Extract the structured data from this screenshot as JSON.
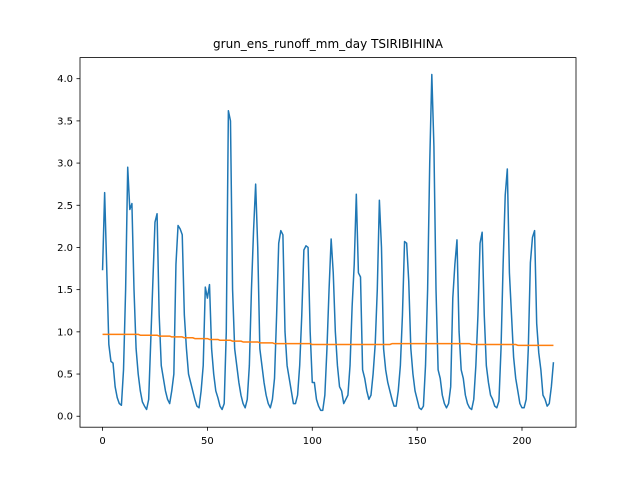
{
  "chart_data": {
    "type": "line",
    "title": "grun_ens_runoff_mm_day TSIRIBIHINA",
    "x": [
      0,
      1,
      2,
      3,
      4,
      5,
      6,
      7,
      8,
      9,
      10,
      11,
      12,
      13,
      14,
      15,
      16,
      17,
      18,
      19,
      20,
      21,
      22,
      23,
      24,
      25,
      26,
      27,
      28,
      29,
      30,
      31,
      32,
      33,
      34,
      35,
      36,
      37,
      38,
      39,
      40,
      41,
      42,
      43,
      44,
      45,
      46,
      47,
      48,
      49,
      50,
      51,
      52,
      53,
      54,
      55,
      56,
      57,
      58,
      59,
      60,
      61,
      62,
      63,
      64,
      65,
      66,
      67,
      68,
      69,
      70,
      71,
      72,
      73,
      74,
      75,
      76,
      77,
      78,
      79,
      80,
      81,
      82,
      83,
      84,
      85,
      86,
      87,
      88,
      89,
      90,
      91,
      92,
      93,
      94,
      95,
      96,
      97,
      98,
      99,
      100,
      101,
      102,
      103,
      104,
      105,
      106,
      107,
      108,
      109,
      110,
      111,
      112,
      113,
      114,
      115,
      116,
      117,
      118,
      119,
      120,
      121,
      122,
      123,
      124,
      125,
      126,
      127,
      128,
      129,
      130,
      131,
      132,
      133,
      134,
      135,
      136,
      137,
      138,
      139,
      140,
      141,
      142,
      143,
      144,
      145,
      146,
      147,
      148,
      149,
      150,
      151,
      152,
      153,
      154,
      155,
      156,
      157,
      158,
      159,
      160,
      161,
      162,
      163,
      164,
      165,
      166,
      167,
      168,
      169,
      170,
      171,
      172,
      173,
      174,
      175,
      176,
      177,
      178,
      179,
      180,
      181,
      182,
      183,
      184,
      185,
      186,
      187,
      188,
      189,
      190,
      191,
      192,
      193,
      194,
      195,
      196,
      197,
      198,
      199,
      200,
      201,
      202,
      203,
      204,
      205,
      206,
      207,
      208,
      209,
      210,
      211,
      212,
      213,
      214,
      215
    ],
    "series": [
      {
        "color": "#1f77b4",
        "values": [
          1.73,
          2.65,
          1.75,
          0.85,
          0.65,
          0.63,
          0.35,
          0.22,
          0.15,
          0.13,
          0.55,
          1.5,
          2.95,
          2.45,
          2.52,
          1.5,
          0.8,
          0.5,
          0.3,
          0.17,
          0.12,
          0.08,
          0.2,
          0.9,
          1.6,
          2.3,
          2.4,
          1.2,
          0.6,
          0.45,
          0.3,
          0.2,
          0.15,
          0.3,
          0.5,
          1.8,
          2.26,
          2.22,
          2.15,
          1.2,
          0.8,
          0.5,
          0.4,
          0.3,
          0.2,
          0.12,
          0.1,
          0.3,
          0.6,
          1.53,
          1.4,
          1.56,
          0.8,
          0.5,
          0.3,
          0.22,
          0.12,
          0.08,
          0.15,
          1.0,
          3.62,
          3.5,
          1.5,
          0.8,
          0.6,
          0.4,
          0.25,
          0.15,
          0.1,
          0.2,
          0.6,
          1.5,
          2.2,
          2.75,
          2.0,
          0.8,
          0.6,
          0.4,
          0.25,
          0.15,
          0.1,
          0.2,
          0.45,
          1.2,
          2.05,
          2.2,
          2.15,
          1.0,
          0.6,
          0.45,
          0.3,
          0.15,
          0.15,
          0.25,
          0.6,
          1.2,
          1.97,
          2.02,
          2.0,
          1.0,
          0.4,
          0.4,
          0.2,
          0.12,
          0.07,
          0.07,
          0.25,
          0.8,
          1.5,
          2.1,
          1.7,
          1.0,
          0.6,
          0.35,
          0.3,
          0.15,
          0.2,
          0.25,
          0.6,
          1.3,
          1.8,
          2.63,
          1.7,
          1.65,
          0.55,
          0.45,
          0.3,
          0.2,
          0.25,
          0.5,
          0.85,
          1.5,
          2.56,
          2.0,
          0.8,
          0.55,
          0.4,
          0.3,
          0.2,
          0.12,
          0.12,
          0.3,
          0.6,
          1.2,
          2.07,
          2.05,
          1.6,
          0.8,
          0.5,
          0.3,
          0.2,
          0.1,
          0.08,
          0.12,
          0.6,
          1.5,
          3.0,
          4.05,
          3.2,
          1.5,
          0.55,
          0.45,
          0.25,
          0.15,
          0.1,
          0.15,
          0.35,
          1.4,
          1.8,
          2.09,
          1.0,
          0.55,
          0.45,
          0.25,
          0.15,
          0.1,
          0.08,
          0.2,
          0.6,
          1.2,
          2.05,
          2.18,
          1.2,
          0.6,
          0.4,
          0.25,
          0.2,
          0.12,
          0.1,
          0.18,
          0.8,
          1.8,
          2.62,
          2.93,
          1.7,
          1.2,
          0.7,
          0.45,
          0.3,
          0.15,
          0.1,
          0.1,
          0.2,
          0.8,
          1.82,
          2.12,
          2.2,
          1.1,
          0.75,
          0.55,
          0.25,
          0.2,
          0.12,
          0.15,
          0.35,
          0.64
        ]
      },
      {
        "color": "#ff7f0e",
        "values": [
          0.97,
          0.97,
          0.97,
          0.97,
          0.97,
          0.97,
          0.97,
          0.97,
          0.97,
          0.97,
          0.97,
          0.97,
          0.97,
          0.97,
          0.97,
          0.97,
          0.97,
          0.97,
          0.96,
          0.96,
          0.96,
          0.96,
          0.96,
          0.96,
          0.96,
          0.96,
          0.96,
          0.95,
          0.95,
          0.95,
          0.95,
          0.95,
          0.95,
          0.94,
          0.94,
          0.94,
          0.94,
          0.94,
          0.94,
          0.93,
          0.93,
          0.93,
          0.93,
          0.93,
          0.92,
          0.92,
          0.92,
          0.92,
          0.92,
          0.92,
          0.92,
          0.91,
          0.91,
          0.91,
          0.91,
          0.91,
          0.9,
          0.9,
          0.9,
          0.9,
          0.9,
          0.9,
          0.89,
          0.89,
          0.89,
          0.89,
          0.89,
          0.88,
          0.88,
          0.88,
          0.88,
          0.88,
          0.88,
          0.88,
          0.88,
          0.87,
          0.87,
          0.87,
          0.87,
          0.87,
          0.87,
          0.87,
          0.86,
          0.86,
          0.86,
          0.86,
          0.86,
          0.86,
          0.86,
          0.86,
          0.86,
          0.86,
          0.86,
          0.86,
          0.86,
          0.86,
          0.86,
          0.86,
          0.86,
          0.86,
          0.85,
          0.85,
          0.85,
          0.85,
          0.85,
          0.85,
          0.85,
          0.85,
          0.85,
          0.85,
          0.85,
          0.85,
          0.85,
          0.85,
          0.85,
          0.85,
          0.85,
          0.85,
          0.85,
          0.85,
          0.85,
          0.85,
          0.85,
          0.85,
          0.85,
          0.85,
          0.85,
          0.85,
          0.85,
          0.85,
          0.85,
          0.85,
          0.85,
          0.85,
          0.85,
          0.85,
          0.85,
          0.85,
          0.86,
          0.86,
          0.86,
          0.86,
          0.86,
          0.86,
          0.86,
          0.86,
          0.86,
          0.86,
          0.86,
          0.86,
          0.86,
          0.86,
          0.86,
          0.86,
          0.86,
          0.86,
          0.86,
          0.86,
          0.86,
          0.86,
          0.86,
          0.86,
          0.86,
          0.86,
          0.86,
          0.86,
          0.86,
          0.86,
          0.86,
          0.86,
          0.86,
          0.86,
          0.86,
          0.86,
          0.86,
          0.86,
          0.85,
          0.85,
          0.85,
          0.85,
          0.85,
          0.85,
          0.85,
          0.85,
          0.85,
          0.85,
          0.85,
          0.85,
          0.85,
          0.85,
          0.85,
          0.85,
          0.85,
          0.85,
          0.85,
          0.85,
          0.85,
          0.85,
          0.84,
          0.84,
          0.84,
          0.84,
          0.84,
          0.84,
          0.84,
          0.84,
          0.84,
          0.84,
          0.84,
          0.84,
          0.84,
          0.84,
          0.84,
          0.84,
          0.84,
          0.84
        ]
      }
    ],
    "xlim": [
      -10.75,
      225.75
    ],
    "xticks": [
      0,
      50,
      100,
      150,
      200
    ],
    "ylim": [
      -0.13,
      4.25
    ],
    "yticks": [
      {
        "value": 0,
        "label": "0.0"
      },
      0.5,
      {
        "value": 1,
        "label": "1.0"
      },
      1.5,
      {
        "value": 2,
        "label": "2.0"
      },
      2.5,
      {
        "value": 3,
        "label": "3.0"
      },
      3.5,
      {
        "value": 4,
        "label": "4.0"
      }
    ],
    "grid": false
  }
}
